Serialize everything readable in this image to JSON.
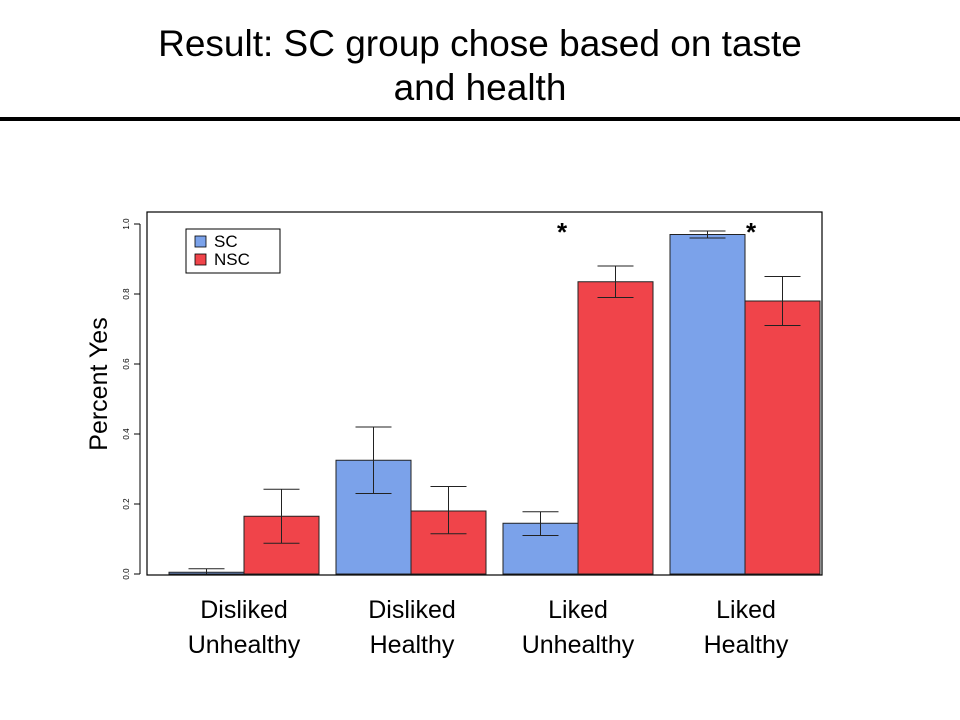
{
  "slide": {
    "title_line1": "Result: SC group chose based on taste",
    "title_line2": "and health"
  },
  "chart_data": {
    "type": "bar",
    "title": "",
    "xlabel": "",
    "ylabel": "Percent Yes",
    "ylim": [
      0,
      1
    ],
    "yticks": [
      "0.0",
      "0.2",
      "0.4",
      "0.6",
      "0.8",
      "1.0"
    ],
    "categories": [
      [
        "Disliked",
        "Unhealthy"
      ],
      [
        "Disliked",
        "Healthy"
      ],
      [
        "Liked",
        "Unhealthy"
      ],
      [
        "Liked",
        "Healthy"
      ]
    ],
    "series": [
      {
        "name": "SC",
        "color": "#7ba2ea",
        "values": [
          0.005,
          0.325,
          0.145,
          0.97
        ],
        "error_low": [
          0.0,
          0.23,
          0.11,
          0.96
        ],
        "error_high": [
          0.015,
          0.42,
          0.178,
          0.98
        ]
      },
      {
        "name": "NSC",
        "color": "#f0444a",
        "values": [
          0.165,
          0.18,
          0.835,
          0.78
        ],
        "error_low": [
          0.088,
          0.115,
          0.79,
          0.71
        ],
        "error_high": [
          0.242,
          0.25,
          0.88,
          0.85
        ]
      }
    ],
    "significance": [
      {
        "category_index": 2,
        "label": "*"
      },
      {
        "category_index": 3,
        "label": "*"
      }
    ],
    "legend_position": "top-left",
    "grid": false
  }
}
